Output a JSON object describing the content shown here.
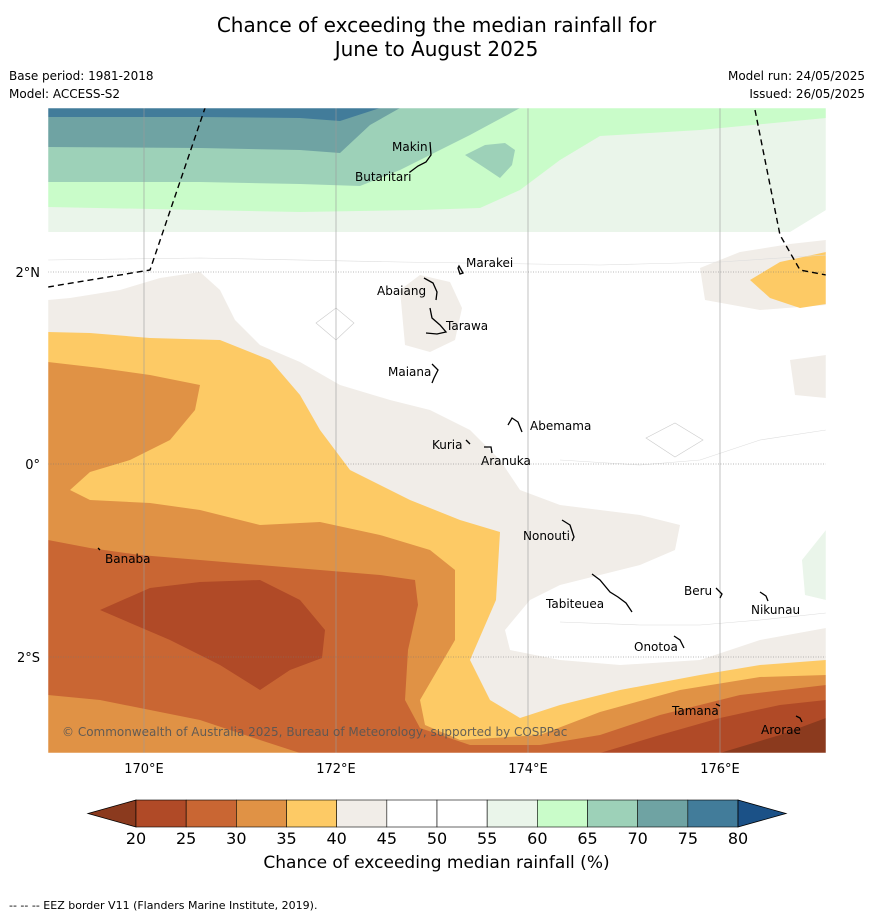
{
  "header": {
    "title_line1": "Chance of exceeding the median rainfall for",
    "title_line2": "June to August 2025",
    "base_period": "Base period: 1981-2018",
    "model": "Model: ACCESS-S2",
    "model_run": "Model run: 24/05/2025",
    "issued": "Issued: 26/05/2025"
  },
  "map": {
    "lon_ticks": [
      "170°E",
      "172°E",
      "174°E",
      "176°E"
    ],
    "lat_ticks": [
      "2°N",
      "0°",
      "2°S"
    ],
    "copyright": "© Commonwealth of Australia 2025, Bureau of Meteorology, supported by COSPPac",
    "islands": [
      {
        "name": "Makin"
      },
      {
        "name": "Butaritari"
      },
      {
        "name": "Marakei"
      },
      {
        "name": "Abaiang"
      },
      {
        "name": "Tarawa"
      },
      {
        "name": "Maiana"
      },
      {
        "name": "Abemama"
      },
      {
        "name": "Kuria"
      },
      {
        "name": "Aranuka"
      },
      {
        "name": "Nonouti"
      },
      {
        "name": "Banaba"
      },
      {
        "name": "Tabiteuea"
      },
      {
        "name": "Beru"
      },
      {
        "name": "Nikunau"
      },
      {
        "name": "Onotoa"
      },
      {
        "name": "Tamana"
      },
      {
        "name": "Arorae"
      }
    ]
  },
  "colorbar": {
    "label": "Chance of exceeding median rainfall (%)",
    "ticks": [
      "20",
      "25",
      "30",
      "35",
      "40",
      "45",
      "50",
      "55",
      "60",
      "65",
      "70",
      "75",
      "80"
    ],
    "colors": [
      "#8b3a1e",
      "#b04a27",
      "#c96633",
      "#e09245",
      "#fdca65",
      "#f1ede8",
      "#ffffff",
      "#ffffff",
      "#eaf5ea",
      "#c9fcc9",
      "#9dd1b8",
      "#6fa3a3",
      "#427c9a",
      "#1b5187"
    ]
  },
  "footnote": "--  --  -- EEZ border V11 (Flanders Marine Institute, 2019)."
}
